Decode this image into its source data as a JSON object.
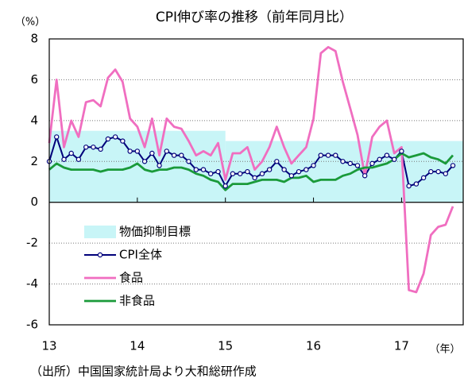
{
  "chart_data": {
    "type": "line",
    "title": "CPI伸び率の推移（前年同月比）",
    "y_axis_label": "（%）",
    "x_axis_label": "（年）",
    "source": "（出所）中国国家統計局より大和総研作成",
    "xlim": [
      13,
      17.7
    ],
    "xticks": [
      13,
      14,
      15,
      16,
      17
    ],
    "ylim": [
      -6,
      8
    ],
    "yticks": [
      -6,
      -4,
      -2,
      0,
      2,
      4,
      6,
      8
    ],
    "negative_tick_color": "#e00000",
    "grid": true,
    "target_label": "物価抑制目標",
    "target_color": "#c8f5f7",
    "target_bands": [
      {
        "x": [
          13,
          15
        ],
        "value": 3.5
      },
      {
        "x": [
          15,
          17
        ],
        "value": 3
      },
      {
        "x": [
          17,
          17.7
        ],
        "value": 3
      }
    ],
    "x": [
      13,
      13.083,
      13.167,
      13.25,
      13.333,
      13.417,
      13.5,
      13.583,
      13.667,
      13.75,
      13.833,
      13.917,
      14,
      14.083,
      14.167,
      14.25,
      14.333,
      14.417,
      14.5,
      14.583,
      14.667,
      14.75,
      14.833,
      14.917,
      15,
      15.083,
      15.167,
      15.25,
      15.333,
      15.417,
      15.5,
      15.583,
      15.667,
      15.75,
      15.833,
      15.917,
      16,
      16.083,
      16.167,
      16.25,
      16.333,
      16.417,
      16.5,
      16.583,
      16.667,
      16.75,
      16.833,
      16.917,
      17,
      17.083,
      17.167,
      17.25,
      17.333,
      17.417,
      17.5,
      17.583
    ],
    "series": [
      {
        "name": "CPI全体",
        "color": "#00007a",
        "markers": true,
        "values": [
          2.0,
          3.2,
          2.1,
          2.4,
          2.1,
          2.7,
          2.7,
          2.6,
          3.1,
          3.2,
          3.0,
          2.5,
          2.5,
          2.0,
          2.4,
          1.8,
          2.5,
          2.3,
          2.3,
          2.0,
          1.6,
          1.6,
          1.4,
          1.5,
          0.8,
          1.4,
          1.4,
          1.5,
          1.2,
          1.4,
          1.6,
          2.0,
          1.6,
          1.3,
          1.5,
          1.6,
          1.8,
          2.3,
          2.3,
          2.3,
          2.0,
          1.9,
          1.8,
          1.3,
          1.9,
          2.1,
          2.3,
          2.1,
          2.5,
          0.8,
          0.9,
          1.2,
          1.5,
          1.5,
          1.4,
          1.8
        ]
      },
      {
        "name": "食品",
        "color": "#f06ec0",
        "markers": false,
        "values": [
          2.9,
          6.0,
          2.7,
          4.0,
          3.2,
          4.9,
          5.0,
          4.7,
          6.1,
          6.5,
          5.9,
          4.1,
          3.7,
          2.7,
          4.1,
          2.3,
          4.1,
          3.7,
          3.6,
          3.0,
          2.3,
          2.5,
          2.3,
          2.9,
          1.1,
          2.4,
          2.4,
          2.7,
          1.6,
          2.0,
          2.7,
          3.7,
          2.7,
          1.9,
          2.3,
          2.7,
          4.1,
          7.3,
          7.6,
          7.4,
          5.9,
          4.6,
          3.3,
          1.3,
          3.2,
          3.7,
          4.0,
          2.4,
          2.7,
          -4.3,
          -4.4,
          -3.5,
          -1.6,
          -1.2,
          -1.1,
          -0.2
        ]
      },
      {
        "name": "非食品",
        "color": "#1a9a3a",
        "markers": false,
        "values": [
          1.6,
          1.9,
          1.7,
          1.6,
          1.6,
          1.6,
          1.6,
          1.5,
          1.6,
          1.6,
          1.6,
          1.7,
          1.9,
          1.6,
          1.5,
          1.6,
          1.6,
          1.7,
          1.7,
          1.6,
          1.4,
          1.3,
          1.1,
          1.0,
          0.6,
          0.9,
          0.9,
          0.9,
          1.0,
          1.1,
          1.1,
          1.1,
          1.0,
          1.2,
          1.2,
          1.3,
          1.0,
          1.1,
          1.1,
          1.1,
          1.3,
          1.4,
          1.6,
          1.7,
          1.7,
          1.8,
          1.9,
          2.1,
          2.4,
          2.2,
          2.3,
          2.4,
          2.2,
          2.1,
          1.9,
          2.3
        ]
      }
    ]
  }
}
